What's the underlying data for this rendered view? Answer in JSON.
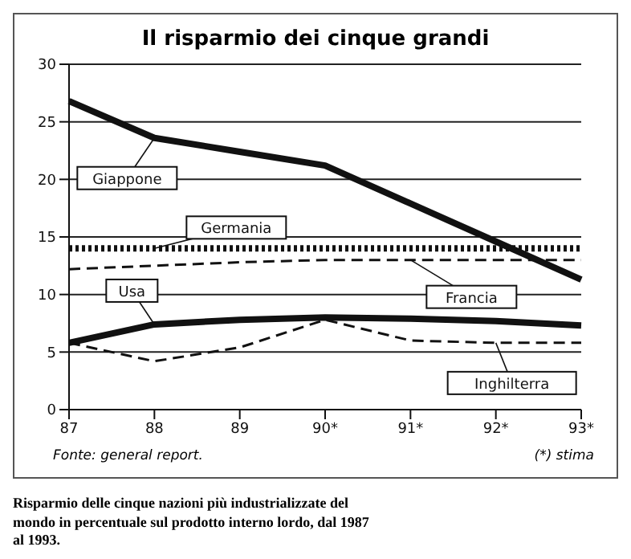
{
  "chart_data": {
    "type": "line",
    "title": "Il risparmio dei cinque grandi",
    "categories": [
      "87",
      "88",
      "89",
      "90*",
      "91*",
      "92*",
      "93*"
    ],
    "series": [
      {
        "name": "Giappone",
        "color": "#111111",
        "line_style": "solid",
        "values": [
          26.8,
          23.6,
          22.4,
          21.2,
          17.9,
          14.6,
          11.3
        ]
      },
      {
        "name": "Germania",
        "color": "#111111",
        "line_style": "dotted",
        "values": [
          14,
          14,
          14,
          14,
          14,
          14,
          14
        ]
      },
      {
        "name": "Francia",
        "color": "#111111",
        "line_style": "dashed",
        "values": [
          12.2,
          12.5,
          12.8,
          13,
          13,
          13,
          13
        ]
      },
      {
        "name": "Usa",
        "color": "#111111",
        "line_style": "solid",
        "values": [
          5.8,
          7.4,
          7.8,
          8,
          7.9,
          7.7,
          7.3
        ]
      },
      {
        "name": "Inghilterra",
        "color": "#111111",
        "line_style": "dashed",
        "values": [
          5.8,
          4.2,
          5.4,
          7.8,
          6,
          5.8,
          5.8
        ]
      }
    ],
    "ylim": [
      0,
      30
    ],
    "yticks": [
      0,
      5,
      10,
      15,
      20,
      25,
      30
    ],
    "grid": "y",
    "marker": "none",
    "annotations": [
      "Fonte: general report.",
      "(*) stima",
      "Risparmio delle cinque nazioni più industrializzate del mondo in percentuale sul prodotto interno lordo, dal 1987 al 1993."
    ]
  }
}
